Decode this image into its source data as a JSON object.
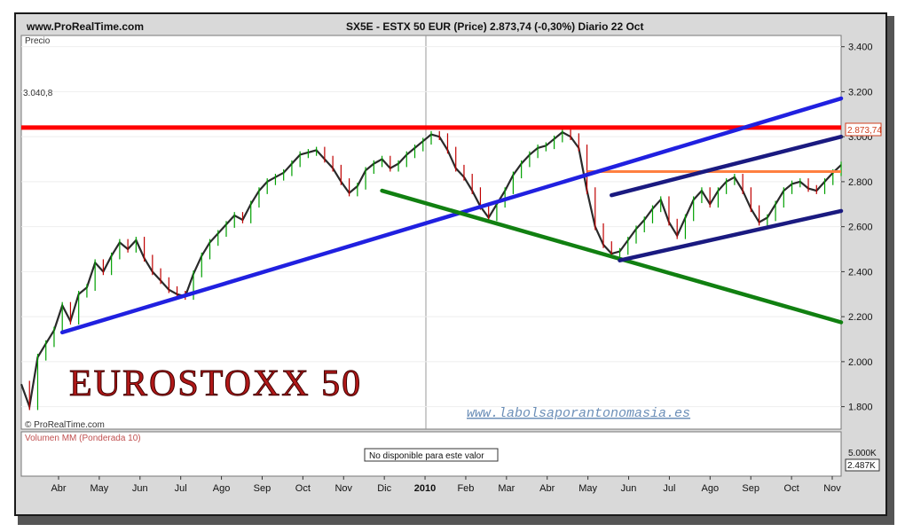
{
  "header": {
    "site": "www.ProRealTime.com",
    "title": "SX5E - ESTX 50 EUR (Price)   2.873,74 (-0,30%)   Diario  22 Oct"
  },
  "price_panel": {
    "label": "Precio",
    "copyright": "© ProRealTime.com",
    "overlay_title": "EUROSTOXX 50",
    "watermark": "www.labolsaporantonomasia.es",
    "resistance_label": "3.040,8",
    "last_price_badge": "2.873,74"
  },
  "volume_panel": {
    "label": "Volumen MM (Ponderada 10)",
    "notice": "No disponible para este valor",
    "axis_label": "5.000K",
    "badge": "2.487K"
  },
  "chart_data": {
    "type": "line",
    "title": "SX5E - ESTX 50 EUR (Price)",
    "xlabel": "",
    "ylabel": "Precio",
    "ylim": [
      1700,
      3450
    ],
    "y_ticks": [
      1800,
      2000,
      2200,
      2400,
      2600,
      2800,
      3000,
      3200,
      3400
    ],
    "y_tick_labels": [
      "1.800",
      "2.000",
      "2.200",
      "2.400",
      "2.600",
      "2.800",
      "3.000",
      "3.200",
      "3.400"
    ],
    "x_ticks": [
      "Abr",
      "May",
      "Jun",
      "Jul",
      "Ago",
      "Sep",
      "Oct",
      "Nov",
      "Dic",
      "2010",
      "Feb",
      "Mar",
      "Abr",
      "May",
      "Jun",
      "Jul",
      "Ago",
      "Sep",
      "Oct",
      "Nov"
    ],
    "x_tick_bold": "2010",
    "series": [
      {
        "x": [
          0,
          2,
          4,
          6,
          8,
          10,
          12,
          14,
          16,
          18,
          20,
          22,
          24,
          26,
          28,
          30,
          32,
          34,
          36,
          38,
          40,
          42,
          44,
          46,
          48,
          50,
          52,
          54,
          56,
          58,
          60,
          62,
          64,
          66,
          68,
          70,
          72,
          74,
          76,
          78,
          80,
          82,
          84,
          86,
          88,
          90,
          92,
          94,
          96,
          98,
          100,
          102,
          104,
          106,
          108,
          110,
          112,
          114,
          116,
          118,
          120,
          122,
          124,
          126,
          128,
          130,
          132,
          134,
          136,
          138,
          140,
          142,
          144,
          146,
          148,
          150,
          152,
          154,
          156,
          158,
          160,
          162,
          164,
          166,
          168,
          170,
          172,
          174,
          176,
          178,
          180,
          182,
          184,
          186,
          188,
          190,
          192,
          194,
          196,
          198,
          200
        ],
        "values": [
          1900,
          1800,
          2020,
          2080,
          2140,
          2250,
          2180,
          2300,
          2330,
          2440,
          2400,
          2470,
          2530,
          2500,
          2540,
          2460,
          2400,
          2360,
          2320,
          2300,
          2290,
          2390,
          2470,
          2530,
          2570,
          2610,
          2650,
          2630,
          2700,
          2760,
          2800,
          2820,
          2840,
          2880,
          2920,
          2930,
          2940,
          2900,
          2860,
          2800,
          2750,
          2780,
          2850,
          2880,
          2900,
          2860,
          2880,
          2920,
          2950,
          2980,
          3010,
          3000,
          2940,
          2860,
          2820,
          2760,
          2690,
          2640,
          2700,
          2760,
          2830,
          2880,
          2920,
          2950,
          2960,
          2990,
          3020,
          3000,
          2950,
          2760,
          2600,
          2520,
          2480,
          2490,
          2540,
          2590,
          2630,
          2680,
          2720,
          2620,
          2560,
          2640,
          2720,
          2760,
          2700,
          2760,
          2800,
          2820,
          2760,
          2680,
          2620,
          2640,
          2700,
          2760,
          2790,
          2800,
          2770,
          2760,
          2800,
          2840,
          2874
        ]
      }
    ],
    "horizontal_lines": [
      {
        "name": "resistance",
        "value": 3040.8,
        "color": "#ff0000"
      },
      {
        "name": "level",
        "value": 2845,
        "color": "#ff8040",
        "x_start": 138
      }
    ],
    "trend_lines": [
      {
        "name": "long-term-support",
        "color": "#2020e0",
        "points": [
          [
            10,
            2130
          ],
          [
            200,
            3170
          ]
        ]
      },
      {
        "name": "downtrend",
        "color": "#118011",
        "points": [
          [
            88,
            2760
          ],
          [
            200,
            2175
          ]
        ]
      },
      {
        "name": "channel-top",
        "color": "#1a1a80",
        "points": [
          [
            144,
            2740
          ],
          [
            200,
            3000
          ]
        ]
      },
      {
        "name": "channel-bottom",
        "color": "#1a1a80",
        "points": [
          [
            146,
            2450
          ],
          [
            200,
            2670
          ]
        ]
      }
    ],
    "colors": {
      "price": "#2a2a2a",
      "up": "#00a000",
      "down": "#c00000"
    }
  }
}
